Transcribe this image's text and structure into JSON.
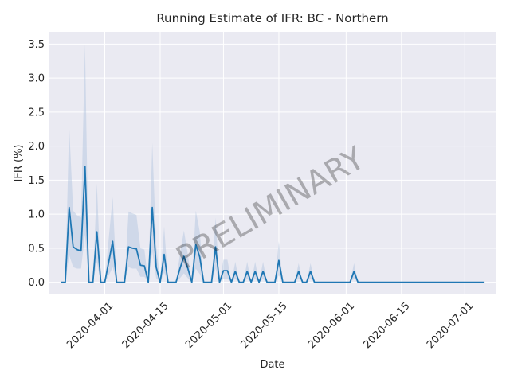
{
  "chart_data": {
    "type": "line",
    "title": "Running Estimate of IFR: BC - Northern",
    "xlabel": "Date",
    "ylabel": "IFR (%)",
    "watermark": "PRELIMINARY",
    "grid": true,
    "legend": "none",
    "colors": {
      "line": "#1f77b4",
      "band": "#b0c4de",
      "background": "#eaeaf2",
      "grid": "#ffffff"
    },
    "x_start": "2020-03-21",
    "x_end": "2020-07-06",
    "xlim": [
      "2020-03-18",
      "2020-07-09"
    ],
    "ylim": [
      -0.18,
      3.68
    ],
    "yticks": [
      0.0,
      0.5,
      1.0,
      1.5,
      2.0,
      2.5,
      3.0,
      3.5
    ],
    "ytick_labels": [
      "0.0",
      "0.5",
      "1.0",
      "1.5",
      "2.0",
      "2.5",
      "3.0",
      "3.5"
    ],
    "xticks": [
      "2020-04-01",
      "2020-04-15",
      "2020-05-01",
      "2020-05-15",
      "2020-06-01",
      "2020-06-15",
      "2020-07-01"
    ],
    "xtick_labels": [
      "2020-04-01",
      "2020-04-15",
      "2020-05-01",
      "2020-05-15",
      "2020-06-01",
      "2020-06-15",
      "2020-07-01"
    ],
    "series": [
      {
        "values": [
          0,
          0,
          1.1,
          0.52,
          0.48,
          0.46,
          1.7,
          0,
          0,
          0.74,
          0,
          0,
          0.3,
          0.6,
          0,
          0,
          0,
          0.52,
          0.5,
          0.49,
          0.25,
          0.24,
          0,
          1.1,
          0.22,
          0,
          0.41,
          0,
          0,
          0,
          0.2,
          0.38,
          0.2,
          0,
          0.55,
          0.37,
          0,
          0,
          0,
          0.52,
          0,
          0.17,
          0.17,
          0,
          0.16,
          0,
          0,
          0.16,
          0,
          0.16,
          0,
          0.16,
          0,
          0,
          0,
          0.32,
          0,
          0,
          0,
          0,
          0.16,
          0,
          0,
          0.16,
          0,
          0,
          0,
          0,
          0,
          0,
          0,
          0,
          0,
          0,
          0.16,
          0,
          0,
          0,
          0,
          0,
          0,
          0,
          0,
          0,
          0,
          0,
          0,
          0,
          0,
          0,
          0,
          0,
          0,
          0,
          0,
          0,
          0,
          0,
          0,
          0,
          0,
          0,
          0,
          0,
          0,
          0,
          0,
          0
        ],
        "upper": [
          0,
          0,
          2.3,
          1.05,
          0.98,
          0.95,
          3.5,
          0,
          0,
          1.45,
          0,
          0,
          0.65,
          1.25,
          0,
          0,
          0,
          1.04,
          1.01,
          0.99,
          0.5,
          0.48,
          0,
          2.05,
          0.55,
          0,
          0.82,
          0,
          0,
          0,
          0.41,
          0.76,
          0.4,
          0,
          1.05,
          0.74,
          0,
          0,
          0,
          0.95,
          0,
          0.33,
          0.33,
          0,
          0.3,
          0,
          0,
          0.3,
          0,
          0.3,
          0,
          0.3,
          0,
          0,
          0,
          0.6,
          0,
          0,
          0,
          0,
          0.28,
          0,
          0,
          0.28,
          0,
          0,
          0,
          0,
          0,
          0,
          0,
          0,
          0,
          0,
          0.28,
          0,
          0,
          0,
          0,
          0,
          0,
          0,
          0,
          0,
          0,
          0,
          0,
          0,
          0,
          0,
          0,
          0,
          0,
          0,
          0,
          0,
          0,
          0,
          0,
          0,
          0,
          0,
          0,
          0,
          0,
          0,
          0,
          0
        ],
        "lower": [
          0,
          0,
          0.4,
          0.22,
          0.2,
          0.2,
          0.7,
          0,
          0,
          0.3,
          0,
          0,
          0.1,
          0.22,
          0,
          0,
          0,
          0.22,
          0.2,
          0.2,
          0.08,
          0.08,
          0,
          0.45,
          0.06,
          0,
          0.14,
          0,
          0,
          0,
          0.06,
          0.13,
          0.06,
          0,
          0.2,
          0.12,
          0,
          0,
          0,
          0.2,
          0,
          0.05,
          0.05,
          0,
          0.05,
          0,
          0,
          0.05,
          0,
          0.05,
          0,
          0.05,
          0,
          0,
          0,
          0.1,
          0,
          0,
          0,
          0,
          0.05,
          0,
          0,
          0.05,
          0,
          0,
          0,
          0,
          0,
          0,
          0,
          0,
          0,
          0,
          0.05,
          0,
          0,
          0,
          0,
          0,
          0,
          0,
          0,
          0,
          0,
          0,
          0,
          0,
          0,
          0,
          0,
          0,
          0,
          0,
          0,
          0,
          0,
          0,
          0,
          0,
          0,
          0,
          0,
          0,
          0,
          0,
          0,
          0
        ]
      }
    ]
  }
}
